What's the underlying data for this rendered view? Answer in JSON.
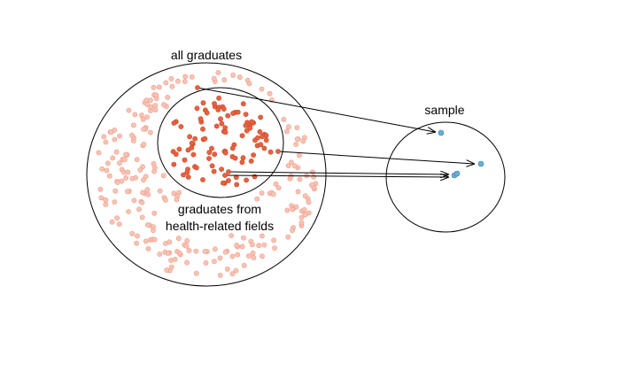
{
  "labels": {
    "population": "all graduates",
    "subgroup_line1": "graduates from",
    "subgroup_line2": "health-related fields",
    "sample": "sample"
  },
  "colors": {
    "background": "#ffffff",
    "outline": "#000000",
    "population_dot_fill": "#f8c4b6",
    "population_dot_stroke": "#ef9a86",
    "subgroup_dot_fill": "#e8623f",
    "subgroup_dot_stroke": "#c8482a",
    "sample_dot_fill": "#6aaed6",
    "sample_dot_stroke": "#3b82b8"
  },
  "counts": {
    "sample_points": 4,
    "arrows": 4
  }
}
